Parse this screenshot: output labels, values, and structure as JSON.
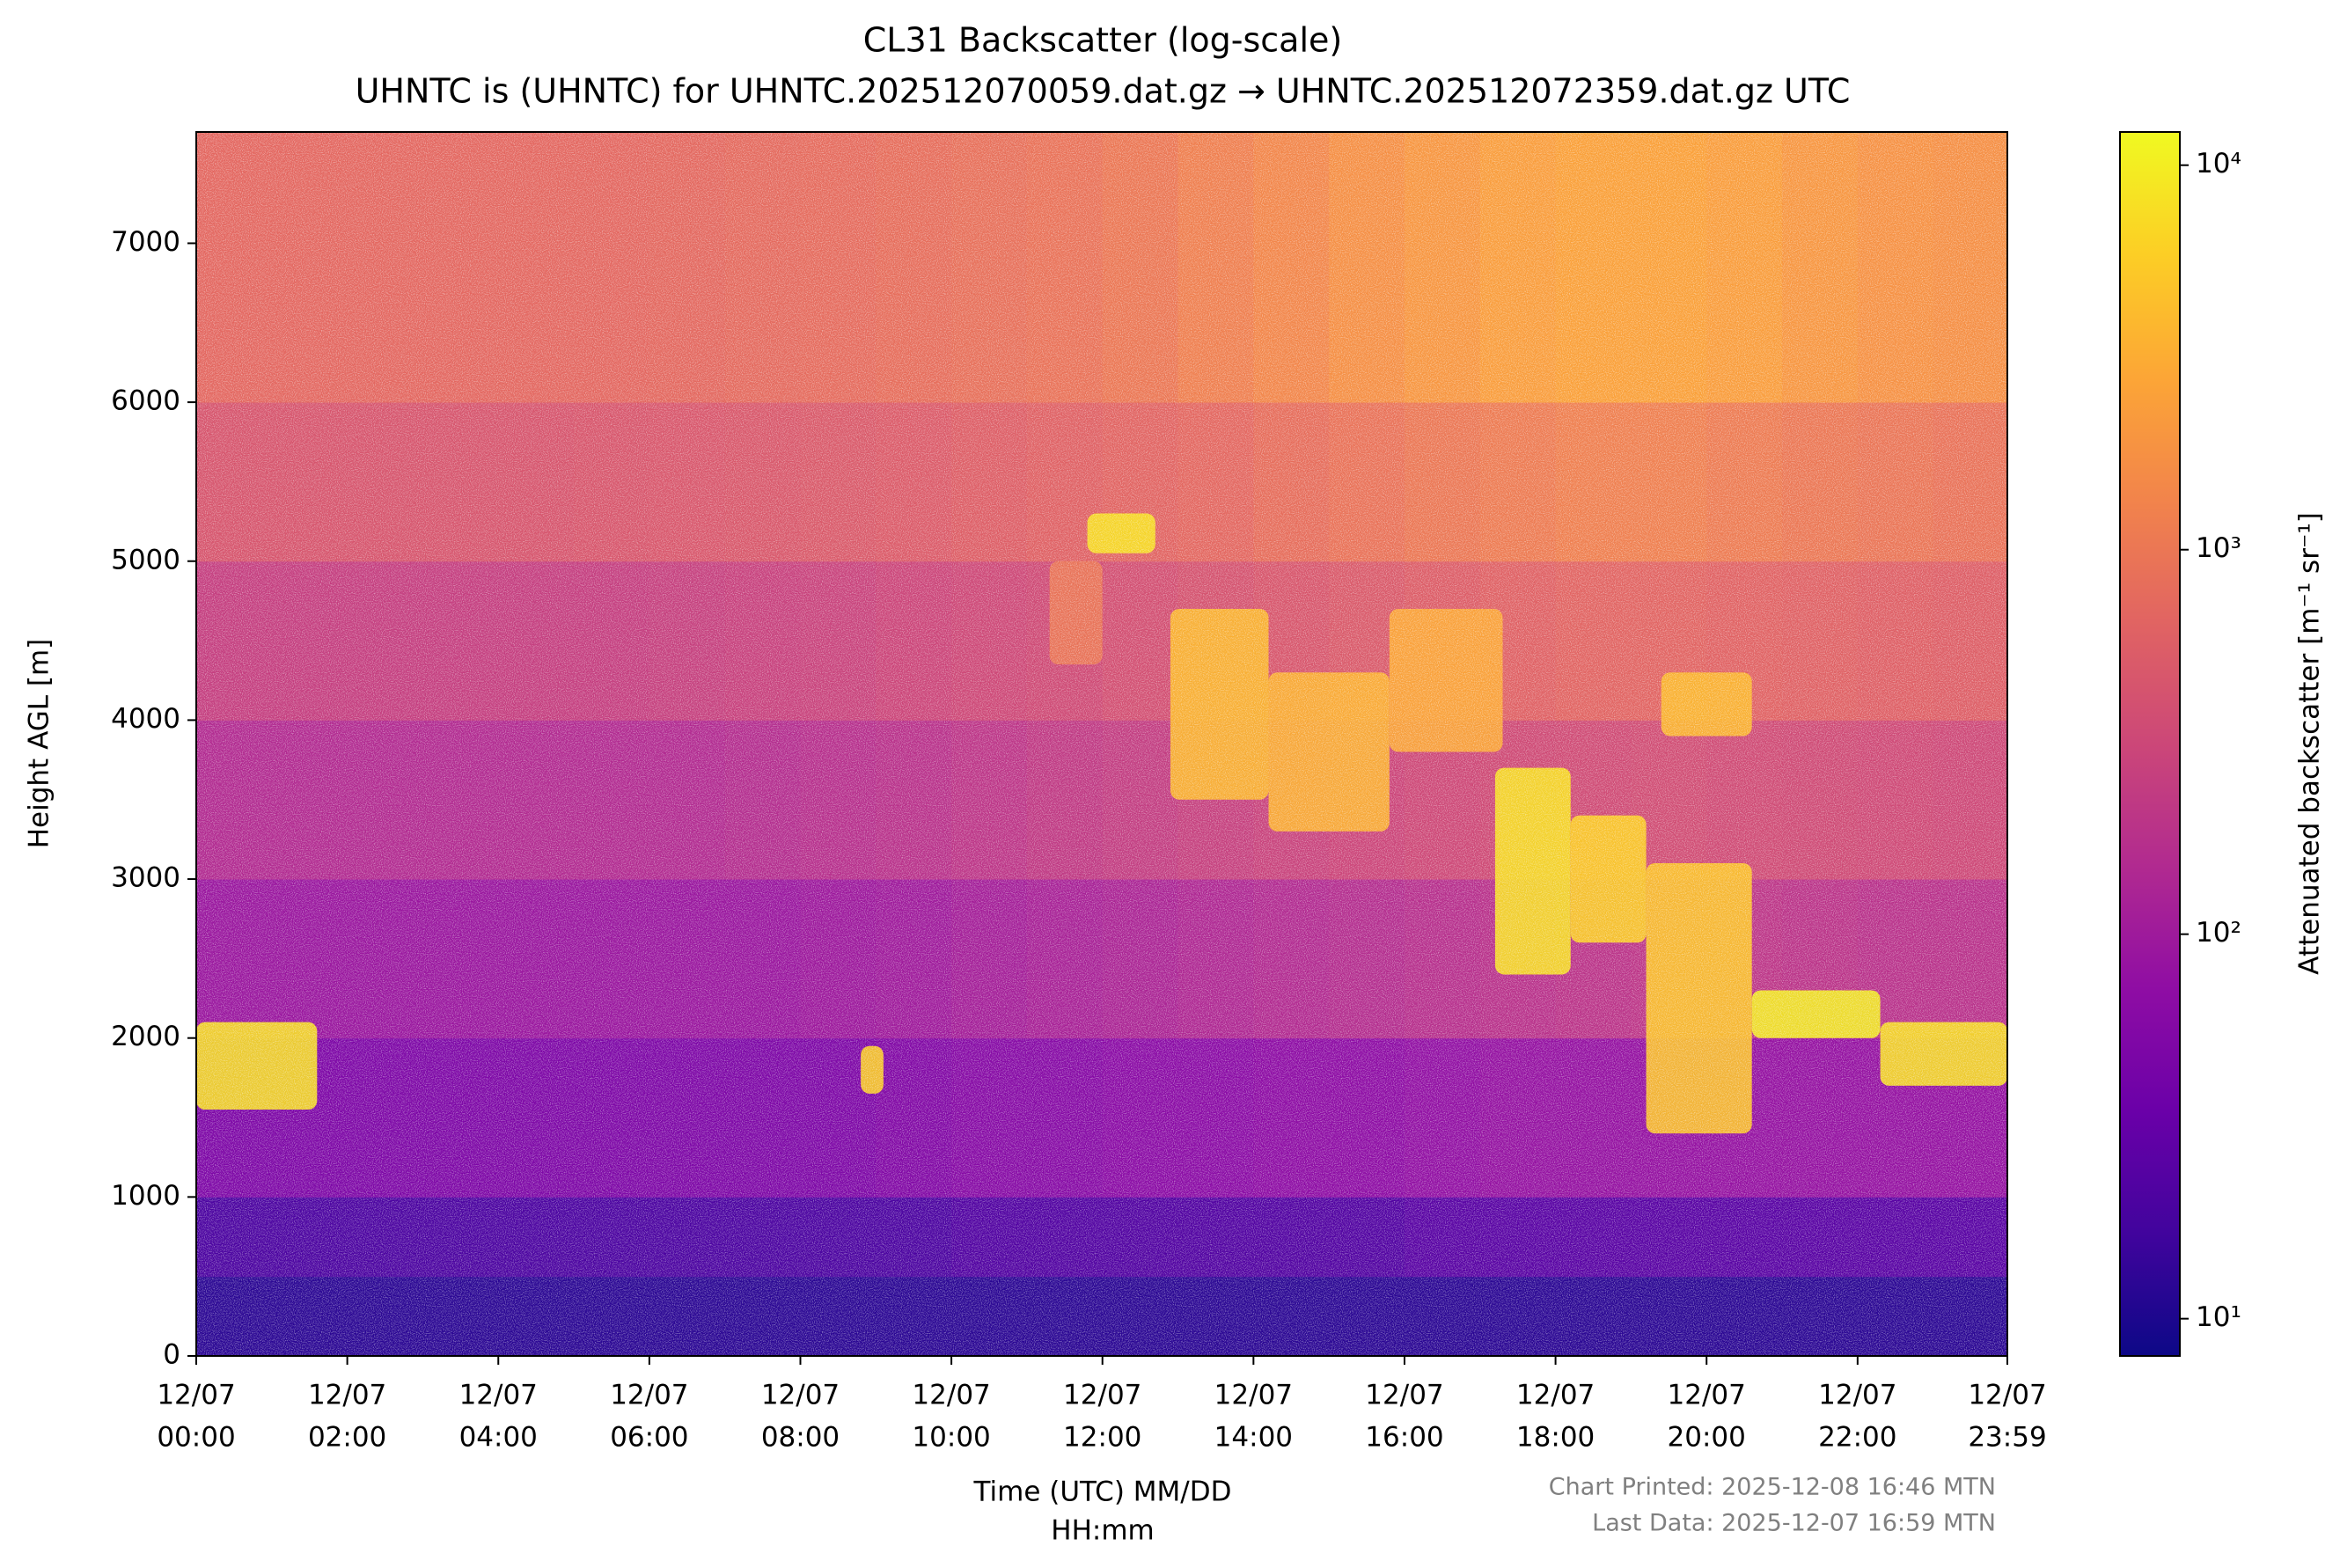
{
  "chart_data": {
    "type": "heatmap",
    "title": "CL31 Backscatter (log-scale)",
    "subtitle": "UHNTC is (UHNTC) for UHNTC.202512070059.dat.gz → UHNTC.202512072359.dat.gz UTC",
    "xlabel": [
      "Time (UTC) MM/DD",
      "HH:mm"
    ],
    "ylabel": "Height AGL [m]",
    "xlim": [
      0,
      23.983
    ],
    "ylim": [
      0,
      7700
    ],
    "xticks": [
      {
        "value": 0,
        "label": [
          "12/07",
          "00:00"
        ]
      },
      {
        "value": 2,
        "label": [
          "12/07",
          "02:00"
        ]
      },
      {
        "value": 4,
        "label": [
          "12/07",
          "04:00"
        ]
      },
      {
        "value": 6,
        "label": [
          "12/07",
          "06:00"
        ]
      },
      {
        "value": 8,
        "label": [
          "12/07",
          "08:00"
        ]
      },
      {
        "value": 10,
        "label": [
          "12/07",
          "10:00"
        ]
      },
      {
        "value": 12,
        "label": [
          "12/07",
          "12:00"
        ]
      },
      {
        "value": 14,
        "label": [
          "12/07",
          "14:00"
        ]
      },
      {
        "value": 16,
        "label": [
          "12/07",
          "16:00"
        ]
      },
      {
        "value": 18,
        "label": [
          "12/07",
          "18:00"
        ]
      },
      {
        "value": 20,
        "label": [
          "12/07",
          "20:00"
        ]
      },
      {
        "value": 22,
        "label": [
          "12/07",
          "22:00"
        ]
      },
      {
        "value": 23.983,
        "label": [
          "12/07",
          "23:59"
        ]
      }
    ],
    "yticks": [
      0,
      1000,
      2000,
      3000,
      4000,
      5000,
      6000,
      7000
    ],
    "colormap": "plasma",
    "log_color": true,
    "clim": [
      8,
      12200
    ],
    "cticks": [
      {
        "value": 10,
        "label": "10¹"
      },
      {
        "value": 100,
        "label": "10²"
      },
      {
        "value": 1000,
        "label": "10³"
      },
      {
        "value": 10000,
        "label": "10⁴"
      }
    ],
    "clabel": "Attenuated backscatter [m⁻¹ sr⁻¹]",
    "xedges": [
      0,
      1,
      2,
      3,
      4,
      5,
      6,
      7,
      8,
      9,
      10,
      11,
      12,
      13,
      14,
      15,
      16,
      17,
      18,
      19,
      20,
      21,
      22,
      23,
      24
    ],
    "yedges": [
      0,
      500,
      1000,
      2000,
      3000,
      4000,
      5000,
      6000,
      7700
    ],
    "z": [
      [
        12,
        12,
        12,
        12,
        12,
        12,
        12,
        12,
        12,
        12,
        12,
        12,
        12,
        12,
        12,
        12,
        12,
        12,
        12,
        12,
        12,
        12,
        12,
        12
      ],
      [
        20,
        20,
        20,
        20,
        20,
        20,
        20,
        20,
        20,
        20,
        22,
        22,
        22,
        22,
        22,
        22,
        25,
        25,
        25,
        25,
        25,
        25,
        25,
        25
      ],
      [
        50,
        50,
        50,
        50,
        50,
        50,
        50,
        50,
        50,
        55,
        60,
        60,
        65,
        65,
        70,
        70,
        75,
        80,
        80,
        80,
        80,
        80,
        80,
        80
      ],
      [
        90,
        90,
        90,
        90,
        90,
        90,
        90,
        90,
        95,
        100,
        110,
        120,
        130,
        140,
        150,
        160,
        170,
        180,
        190,
        200,
        200,
        190,
        180,
        180
      ],
      [
        150,
        150,
        150,
        150,
        150,
        150,
        150,
        160,
        170,
        180,
        200,
        220,
        240,
        260,
        280,
        300,
        320,
        340,
        350,
        360,
        350,
        340,
        330,
        320
      ],
      [
        250,
        250,
        250,
        250,
        250,
        250,
        260,
        270,
        280,
        300,
        320,
        340,
        380,
        420,
        460,
        500,
        550,
        600,
        650,
        650,
        620,
        600,
        580,
        560
      ],
      [
        450,
        450,
        450,
        450,
        450,
        460,
        470,
        480,
        500,
        520,
        560,
        600,
        650,
        700,
        800,
        900,
        1000,
        1100,
        1200,
        1200,
        1100,
        1000,
        950,
        900
      ],
      [
        700,
        700,
        700,
        700,
        700,
        700,
        720,
        740,
        760,
        800,
        850,
        900,
        1000,
        1200,
        1400,
        1700,
        2000,
        2300,
        2500,
        2500,
        2300,
        2000,
        1800,
        1700
      ]
    ],
    "features": [
      {
        "x": [
          0.0,
          1.6
        ],
        "y": [
          1550,
          2100
        ],
        "value": 8000
      },
      {
        "x": [
          8.8,
          9.1
        ],
        "y": [
          1650,
          1950
        ],
        "value": 6000
      },
      {
        "x": [
          11.3,
          12.0
        ],
        "y": [
          4350,
          5000
        ],
        "value": 1000
      },
      {
        "x": [
          11.8,
          12.7
        ],
        "y": [
          5050,
          5300
        ],
        "value": 8000
      },
      {
        "x": [
          12.9,
          14.2
        ],
        "y": [
          3500,
          4700
        ],
        "value": 4000
      },
      {
        "x": [
          14.2,
          15.8
        ],
        "y": [
          3300,
          4300
        ],
        "value": 3500
      },
      {
        "x": [
          15.8,
          17.3
        ],
        "y": [
          3800,
          4700
        ],
        "value": 3000
      },
      {
        "x": [
          17.2,
          18.2
        ],
        "y": [
          2400,
          3700
        ],
        "value": 8000
      },
      {
        "x": [
          18.2,
          19.2
        ],
        "y": [
          2600,
          3400
        ],
        "value": 6000
      },
      {
        "x": [
          19.2,
          20.6
        ],
        "y": [
          1400,
          3100
        ],
        "value": 5000
      },
      {
        "x": [
          19.4,
          20.6
        ],
        "y": [
          3900,
          4300
        ],
        "value": 4000
      },
      {
        "x": [
          20.6,
          22.3
        ],
        "y": [
          2000,
          2300
        ],
        "value": 10000
      },
      {
        "x": [
          22.3,
          23.983
        ],
        "y": [
          1700,
          2100
        ],
        "value": 8000
      }
    ],
    "footnotes": [
      "Chart Printed: 2025-12-08 16:46 MTN",
      "Last Data: 2025-12-07 16:59 MTN"
    ]
  }
}
